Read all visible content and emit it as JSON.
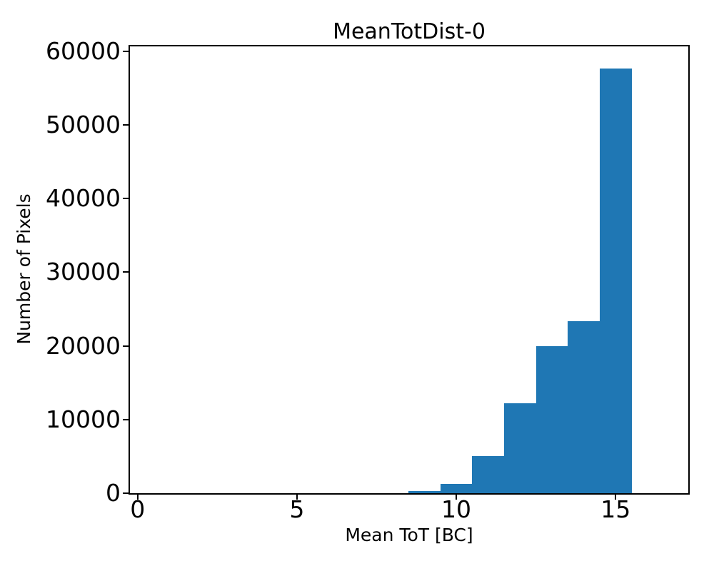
{
  "chart_data": {
    "type": "bar",
    "subtype": "histogram",
    "title": "MeanTotDist-0",
    "xlabel": "Mean ToT [BC]",
    "ylabel": "Number of Pixels",
    "bar_color": "#1f77b4",
    "axis_color": "#000000",
    "background_color": "#ffffff",
    "grid": false,
    "legend": false,
    "xlim": [
      -0.24,
      17.28
    ],
    "ylim": [
      0,
      60650
    ],
    "xticks": [
      0,
      5,
      10,
      15
    ],
    "xtick_labels": [
      "0",
      "5",
      "10",
      "15"
    ],
    "yticks": [
      0,
      10000,
      20000,
      30000,
      40000,
      50000,
      60000
    ],
    "ytick_labels": [
      "0",
      "10000",
      "20000",
      "30000",
      "40000",
      "50000",
      "60000"
    ],
    "bin_edges": [
      0.5,
      1.5,
      2.5,
      3.5,
      4.5,
      5.5,
      6.5,
      7.5,
      8.5,
      9.5,
      10.5,
      11.5,
      12.5,
      13.5,
      14.5,
      15.5,
      16.5
    ],
    "bin_centers": [
      1,
      2,
      3,
      4,
      5,
      6,
      7,
      8,
      9,
      10,
      11,
      12,
      13,
      14,
      15,
      16
    ],
    "counts": [
      0,
      0,
      0,
      0,
      0,
      0,
      0,
      0,
      270,
      1300,
      5000,
      12200,
      19950,
      23350,
      57650,
      0
    ]
  }
}
